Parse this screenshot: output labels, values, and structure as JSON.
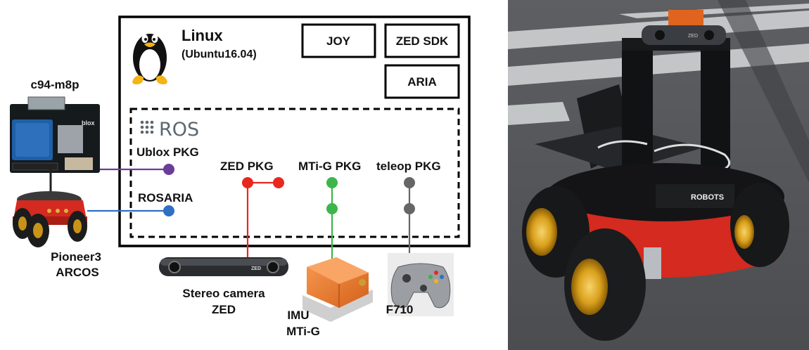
{
  "linux": {
    "title": "Linux",
    "subtitle": "(Ubuntu16.04)"
  },
  "boxes": {
    "joy": "JOY",
    "zed_sdk": "ZED SDK",
    "aria": "ARIA"
  },
  "ros": {
    "logo_text": "ROS"
  },
  "packages": {
    "ublox": "Ublox PKG",
    "rosaria": "ROSARIA",
    "zed": "ZED PKG",
    "mtig": "MTi-G PKG",
    "teleop": "teleop PKG"
  },
  "devices": {
    "gps_board": "c94-m8p",
    "gps_board_brand": "blox",
    "robot_line1": "Pioneer3",
    "robot_line2": "ARCOS",
    "camera_line1": "Stereo camera",
    "camera_line2": "ZED",
    "camera_logo": "ZED",
    "imu_line1": "IMU",
    "imu_line2": "MTi-G",
    "gamepad": "F710"
  },
  "photo": {
    "robot_brand_text": "ROBOTS",
    "camera_text": "ZED"
  },
  "colors": {
    "ublox": "#6a3d9a",
    "rosaria": "#2f6fc4",
    "zed": "#e8281e",
    "mtig": "#3cb54a",
    "teleop": "#666666",
    "robot_red": "#d42a1f",
    "imu_orange": "#ef7a30"
  }
}
